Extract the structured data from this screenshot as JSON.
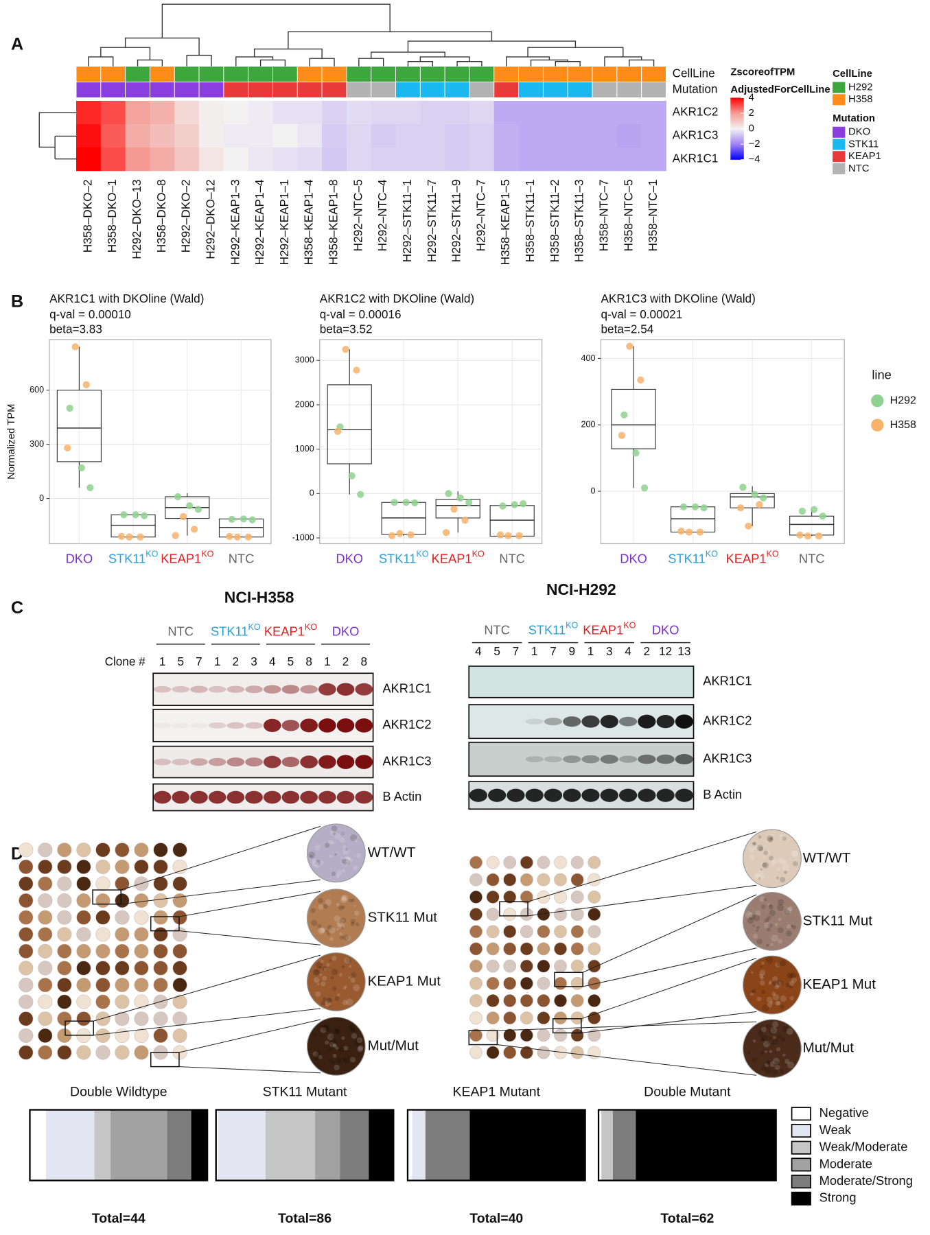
{
  "panel_labels": [
    "A",
    "B",
    "C",
    "D"
  ],
  "chart_data": [
    {
      "type": "heatmap",
      "columns": [
        "H358–DKO–2",
        "H358–DKO–1",
        "H292–DKO–13",
        "H358–DKO–8",
        "H292–DKO–2",
        "H292–DKO–12",
        "H292–KEAP1–3",
        "H292–KEAP1–4",
        "H292–KEAP1–1",
        "H358–KEAP1–4",
        "H358–KEAP1–8",
        "H292–NTC–5",
        "H292–NTC–4",
        "H292–STK11–1",
        "H292–STK11–7",
        "H292–STK11–9",
        "H292–NTC–7",
        "H358–KEAP1–5",
        "H358–STK11–1",
        "H358–STK11–2",
        "H358–STK11–3",
        "H358–NTC–7",
        "H358–NTC–5",
        "H358–NTC–1"
      ],
      "rows": [
        "AKR1C2",
        "AKR1C3",
        "AKR1C1"
      ],
      "values": [
        [
          3.5,
          3.0,
          1.8,
          1.5,
          0.6,
          0.1,
          0.0,
          -0.1,
          -0.3,
          -0.3,
          -0.6,
          -0.4,
          -0.5,
          -0.5,
          -0.6,
          -0.6,
          -0.5,
          -1.3,
          -1.3,
          -1.3,
          -1.3,
          -1.3,
          -1.3,
          -1.3
        ],
        [
          3.8,
          2.8,
          1.6,
          1.2,
          0.8,
          0.1,
          -0.1,
          -0.1,
          0.0,
          -0.2,
          -0.7,
          -0.5,
          -0.7,
          -0.6,
          -0.6,
          -0.7,
          -0.6,
          -1.2,
          -1.3,
          -1.3,
          -1.3,
          -1.3,
          -1.4,
          -1.3
        ],
        [
          4.0,
          3.0,
          2.0,
          1.6,
          1.0,
          0.3,
          0.0,
          -0.2,
          -0.3,
          -0.4,
          -0.8,
          -0.5,
          -0.6,
          -0.6,
          -0.6,
          -0.7,
          -0.6,
          -1.2,
          -1.3,
          -1.3,
          -1.3,
          -1.3,
          -1.3,
          -1.3
        ]
      ],
      "annotations": [
        {
          "name": "CellLine",
          "values": [
            "H358",
            "H358",
            "H292",
            "H358",
            "H292",
            "H292",
            "H292",
            "H292",
            "H292",
            "H358",
            "H358",
            "H292",
            "H292",
            "H292",
            "H292",
            "H292",
            "H292",
            "H358",
            "H358",
            "H358",
            "H358",
            "H358",
            "H358",
            "H358"
          ]
        },
        {
          "name": "Mutation",
          "values": [
            "DKO",
            "DKO",
            "DKO",
            "DKO",
            "DKO",
            "DKO",
            "KEAP1",
            "KEAP1",
            "KEAP1",
            "KEAP1",
            "KEAP1",
            "NTC",
            "NTC",
            "STK11",
            "STK11",
            "STK11",
            "NTC",
            "KEAP1",
            "STK11",
            "STK11",
            "STK11",
            "NTC",
            "NTC",
            "NTC"
          ]
        }
      ],
      "annotation_legends": [
        {
          "title": "CellLine",
          "items": [
            {
              "name": "H292",
              "color": "#3da63d"
            },
            {
              "name": "H358",
              "color": "#ff8c1a"
            }
          ]
        },
        {
          "title": "Mutation",
          "items": [
            {
              "name": "DKO",
              "color": "#8a3ee0"
            },
            {
              "name": "STK11",
              "color": "#1ab8f0"
            },
            {
              "name": "KEAP1",
              "color": "#e83a3a"
            },
            {
              "name": "NTC",
              "color": "#b3b3b3"
            }
          ]
        }
      ],
      "colorbar": {
        "title": [
          "ZscoreofTPM",
          "AdjustedForCellLine"
        ],
        "zlim": [
          -4,
          4
        ],
        "ticks": [
          4,
          2,
          0,
          {
            "value": -2,
            "label": "−2"
          },
          {
            "value": -4,
            "label": "−4"
          }
        ],
        "colors": [
          "#0000ff",
          "#a183f2",
          "#f2f2f2",
          "#f59a93",
          "#ff0000"
        ]
      }
    },
    {
      "type": "box",
      "title": "AKR1C1 with DKOline (Wald)",
      "subtitle": [
        "q-val = 0.00010",
        "beta=3.83"
      ],
      "ylabel": "Normalized TPM",
      "categories": [
        "DKO",
        "STK11",
        "KEAP1",
        "NTC"
      ],
      "category_superscripts": {
        "1": "KO",
        "2": "KO"
      },
      "category_colors": [
        "#7b2fd0",
        "#2a9fd8",
        "#e02020",
        "#666666"
      ],
      "ylim": [
        -250,
        880
      ],
      "yticks": [
        0,
        300,
        600
      ],
      "grid": true,
      "boxes": [
        [
          60,
          204,
          390,
          600,
          840
        ],
        [
          -213,
          -213,
          -148,
          -90,
          -90
        ],
        [
          -205,
          -110,
          -50,
          10,
          30
        ],
        [
          -213,
          -213,
          -160,
          -113,
          -113
        ]
      ],
      "series": [
        {
          "name": "H292",
          "color": "#8fd18f",
          "values": [
            [
              500,
              170,
              60
            ],
            [
              -90,
              -90,
              -95
            ],
            [
              10,
              -40,
              -60
            ],
            [
              -115,
              -113,
              -118
            ]
          ]
        },
        {
          "name": "H358",
          "color": "#f7b26b",
          "values": [
            [
              840,
              630,
              280
            ],
            [
              -213,
              -213,
              -210
            ],
            [
              -100,
              -170,
              -205
            ],
            [
              -213,
              -213,
              -210
            ]
          ]
        }
      ]
    },
    {
      "type": "box",
      "title": "AKR1C2 with DKOline (Wald)",
      "subtitle": [
        "q-val = 0.00016",
        "beta=3.52"
      ],
      "categories": [
        "DKO",
        "STK11",
        "KEAP1",
        "NTC"
      ],
      "category_superscripts": {
        "1": "KO",
        "2": "KO"
      },
      "category_colors": [
        "#7b2fd0",
        "#2a9fd8",
        "#e02020",
        "#666666"
      ],
      "ylim": [
        -1130,
        3470
      ],
      "yticks": [
        -1000,
        0,
        1000,
        2000,
        3000
      ],
      "grid": true,
      "boxes": [
        [
          -20,
          670,
          1440,
          2450,
          3250
        ],
        [
          -950,
          -920,
          -550,
          -200,
          -200
        ],
        [
          -880,
          -550,
          -270,
          -130,
          50
        ],
        [
          -960,
          -960,
          -600,
          -270,
          -230
        ]
      ],
      "series": [
        {
          "name": "H292",
          "color": "#8fd18f",
          "values": [
            [
              1500,
              400,
              -20
            ],
            [
              -200,
              -200,
              -210
            ],
            [
              0,
              -100,
              -200
            ],
            [
              -280,
              -250,
              -230
            ]
          ]
        },
        {
          "name": "H358",
          "color": "#f7b26b",
          "values": [
            [
              3250,
              2780,
              1400
            ],
            [
              -900,
              -930,
              -950
            ],
            [
              -350,
              -600,
              -880
            ],
            [
              -950,
              -950,
              -930
            ]
          ]
        }
      ]
    },
    {
      "type": "box",
      "title": "AKR1C3 with DKOline (Wald)",
      "subtitle": [
        "q-val = 0.00021",
        "beta=2.54"
      ],
      "categories": [
        "DKO",
        "STK11",
        "KEAP1",
        "NTC"
      ],
      "category_superscripts": {
        "1": "KO",
        "2": "KO"
      },
      "category_colors": [
        "#7b2fd0",
        "#2a9fd8",
        "#e02020",
        "#666666"
      ],
      "ylim": [
        -158,
        457
      ],
      "yticks": [
        0,
        200,
        400
      ],
      "grid": true,
      "legend_title": "line",
      "boxes": [
        [
          10,
          128,
          200,
          307,
          437
        ],
        [
          -123,
          -123,
          -83,
          -47,
          -47
        ],
        [
          -105,
          -50,
          -17,
          -7,
          15
        ],
        [
          -135,
          -132,
          -100,
          -75,
          -55
        ]
      ],
      "series": [
        {
          "name": "H292",
          "color": "#8fd18f",
          "values": [
            [
              230,
              115,
              10
            ],
            [
              -47,
              -47,
              -50
            ],
            [
              12,
              -10,
              -20
            ],
            [
              -60,
              -55,
              -75
            ]
          ]
        },
        {
          "name": "H358",
          "color": "#f7b26b",
          "values": [
            [
              437,
              335,
              168
            ],
            [
              -123,
              -123,
              -120
            ],
            [
              -105,
              -40,
              -50
            ],
            [
              -135,
              -135,
              -132
            ]
          ]
        }
      ]
    },
    {
      "type": "stacked-proportion",
      "categories": [
        "Double Wildtype",
        "STK11 Mutant",
        "KEAP1 Mutant",
        "Double Mutant"
      ],
      "category_colors": [
        "#777777",
        "#2a9fd8",
        "#e02020",
        "#7b2fd0"
      ],
      "totals": [
        "Total=44",
        "Total=86",
        "Total=40",
        "Total=62"
      ],
      "series": [
        {
          "name": "Negative",
          "color": "#ffffff",
          "values": [
            4,
            1,
            1,
            1
          ]
        },
        {
          "name": "Weak",
          "color": "#e4e5f2",
          "values": [
            12,
            23,
            3,
            0
          ]
        },
        {
          "name": "Weak/Moderate",
          "color": "#c6c6c6",
          "values": [
            4,
            24,
            0,
            4
          ]
        },
        {
          "name": "Moderate",
          "color": "#a2a2a2",
          "values": [
            14,
            12,
            0,
            0
          ]
        },
        {
          "name": "Moderate/Strong",
          "color": "#7c7c7c",
          "values": [
            6,
            14,
            10,
            8
          ]
        },
        {
          "name": "Strong",
          "color": "#000000",
          "values": [
            4,
            12,
            26,
            49
          ]
        }
      ]
    }
  ],
  "blots": [
    {
      "title": "NCI-H358",
      "clone_label": "Clone #",
      "groups": [
        {
          "text": "NTC",
          "color": "#666666"
        },
        {
          "text": "STK11",
          "sup": "KO",
          "color": "#2a9fd8"
        },
        {
          "text": "KEAP1",
          "sup": "KO",
          "color": "#e02020"
        },
        {
          "text": "DKO",
          "color": "#7b2fd0"
        }
      ],
      "clones": [
        1,
        5,
        7,
        1,
        2,
        3,
        4,
        5,
        8,
        1,
        2,
        8
      ],
      "proteins": [
        "AKR1C1",
        "AKR1C2",
        "AKR1C3",
        "B Actin"
      ]
    },
    {
      "title": "NCI-H292",
      "groups": [
        {
          "text": "NTC",
          "color": "#666666"
        },
        {
          "text": "STK11",
          "sup": "KO",
          "color": "#2a9fd8"
        },
        {
          "text": "KEAP1",
          "sup": "KO",
          "color": "#e02020"
        },
        {
          "text": "DKO",
          "color": "#7b2fd0"
        }
      ],
      "clones": [
        4,
        5,
        7,
        1,
        7,
        9,
        1,
        3,
        4,
        2,
        12,
        13
      ],
      "proteins": [
        "AKR1C1",
        "AKR1C2",
        "AKR1C3",
        "B Actin"
      ]
    }
  ],
  "ihc": [
    {
      "labels": [
        "WT/WT",
        "STK11 Mut",
        "KEAP1 Mut",
        "Mut/Mut"
      ]
    },
    {
      "labels": [
        "WT/WT",
        "STK11 Mut",
        "KEAP1 Mut",
        "Mut/Mut"
      ]
    }
  ]
}
